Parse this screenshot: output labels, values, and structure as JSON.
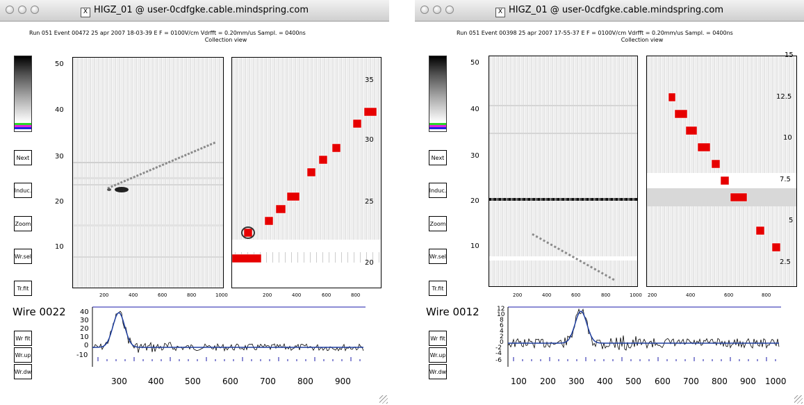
{
  "windows": [
    {
      "title": "HIGZ_01 @ user-0cdfgke.cable.mindspring.com",
      "header_line1": "Run 051  Event 00472   25 apr 2007   18-03-39    E F = 0100V/cm  Vdrfft = 0.20mm/us  Sampl. = 0400ns",
      "header_line2": "Collection view",
      "buttons": [
        "Next",
        "Induc.",
        "Zoom",
        "Wr.sel",
        "Tr.fit"
      ],
      "bottom_buttons": [
        "Wr fit",
        "Wr.up",
        "Wr.dw"
      ],
      "wire_label": "Wire 0022",
      "left_y_ticks": [
        "50",
        "40",
        "30",
        "20",
        "10"
      ],
      "left_x_ticks": [
        "200",
        "400",
        "600",
        "800",
        "1000"
      ],
      "right_x_ticks": [
        "200",
        "400",
        "600",
        "800"
      ],
      "right_axis_ticks": [
        "35",
        "30",
        "25",
        "20"
      ],
      "wave_y_ticks": [
        "40",
        "30",
        "20",
        "10",
        "0",
        "-10"
      ],
      "wave_x_ticks": [
        "300",
        "400",
        "500",
        "600",
        "700",
        "800",
        "900"
      ]
    },
    {
      "title": "HIGZ_01 @ user-0cdfgke.cable.mindspring.com",
      "header_line1": "Run 051  Event 00398   25 apr 2007   17-55-37    E F = 0100V/cm  Vdrfft = 0.20mm/us  Sampl. = 0400ns",
      "header_line2": "Collection view",
      "buttons": [
        "Next",
        "Induc.",
        "Zoom",
        "Wr.sel",
        "Tr.fit"
      ],
      "bottom_buttons": [
        "Wr fit",
        "Wr.up",
        "Wr.dw"
      ],
      "wire_label": "Wire 0012",
      "left_y_ticks": [
        "50",
        "40",
        "30",
        "20",
        "10"
      ],
      "left_x_ticks": [
        "200",
        "400",
        "600",
        "800",
        "1000"
      ],
      "right_x_ticks": [
        "200",
        "400",
        "600",
        "800"
      ],
      "right_axis_ticks": [
        "15",
        "12.5",
        "10",
        "7.5",
        "5",
        "2.5"
      ],
      "wave_y_ticks": [
        "12",
        "10",
        "8",
        "6",
        "4",
        "2",
        "0",
        "-2",
        "-4",
        "-6"
      ],
      "wave_x_ticks": [
        "100",
        "200",
        "300",
        "400",
        "500",
        "600",
        "700",
        "800",
        "900",
        "1000"
      ]
    }
  ],
  "colors": {
    "hit_red": "#e60000",
    "axis_blue": "#1a1aa8",
    "fit_blue": "#1f3fa0"
  }
}
